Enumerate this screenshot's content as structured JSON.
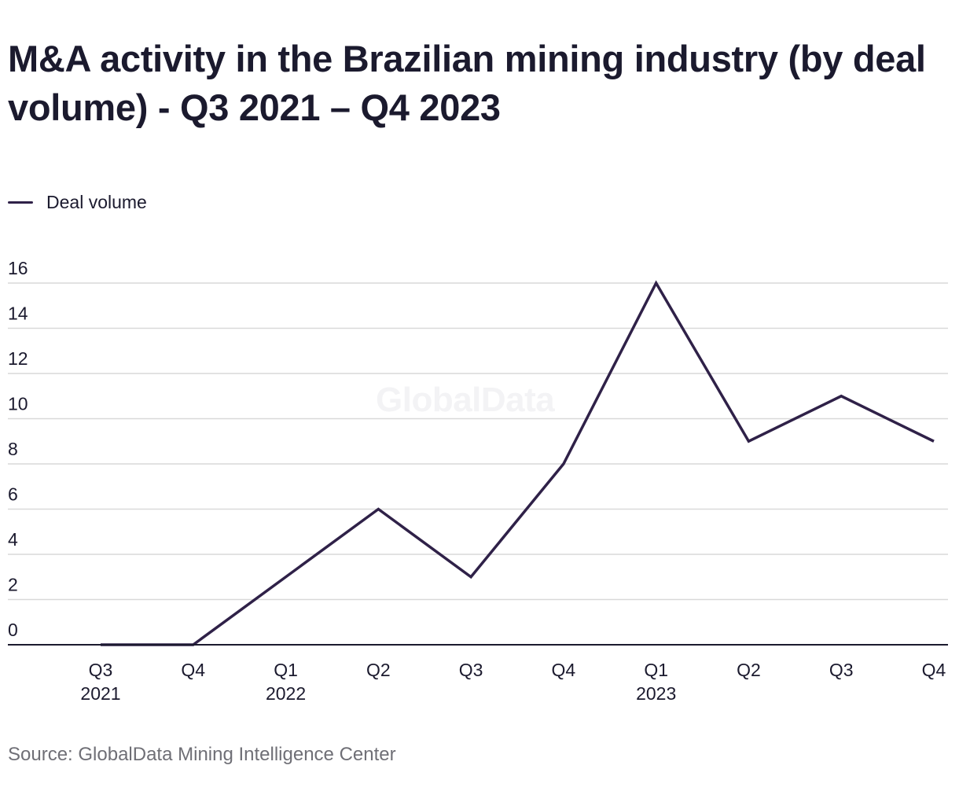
{
  "title": "M&A activity in the Brazilian mining industry (by deal volume) - Q3 2021 – Q4 2023",
  "legend": {
    "label": "Deal volume"
  },
  "watermark": "GlobalData",
  "source": "Source: GlobalData Mining Intelligence Center",
  "colors": {
    "line": "#2f2148",
    "grid": "#d9d9d9",
    "axis": "#1b1a2e",
    "text": "#1b1a2e",
    "muted": "#6f6f76"
  },
  "chart_data": {
    "type": "line",
    "title": "M&A activity in the Brazilian mining industry (by deal volume) - Q3 2021 – Q4 2023",
    "categories": [
      [
        "Q3",
        "2021"
      ],
      [
        "Q4"
      ],
      [
        "Q1",
        "2022"
      ],
      [
        "Q2"
      ],
      [
        "Q3"
      ],
      [
        "Q4"
      ],
      [
        "Q1",
        "2023"
      ],
      [
        "Q2"
      ],
      [
        "Q3"
      ],
      [
        "Q4"
      ]
    ],
    "series": [
      {
        "name": "Deal volume",
        "values": [
          0,
          0,
          3,
          6,
          3,
          8,
          16,
          9,
          11,
          9
        ]
      }
    ],
    "y_ticks": [
      "0",
      "2",
      "4",
      "6",
      "8",
      "10",
      "12",
      "14",
      "16"
    ],
    "ylim": [
      0,
      16
    ],
    "grid": true,
    "legend": "top-left"
  }
}
